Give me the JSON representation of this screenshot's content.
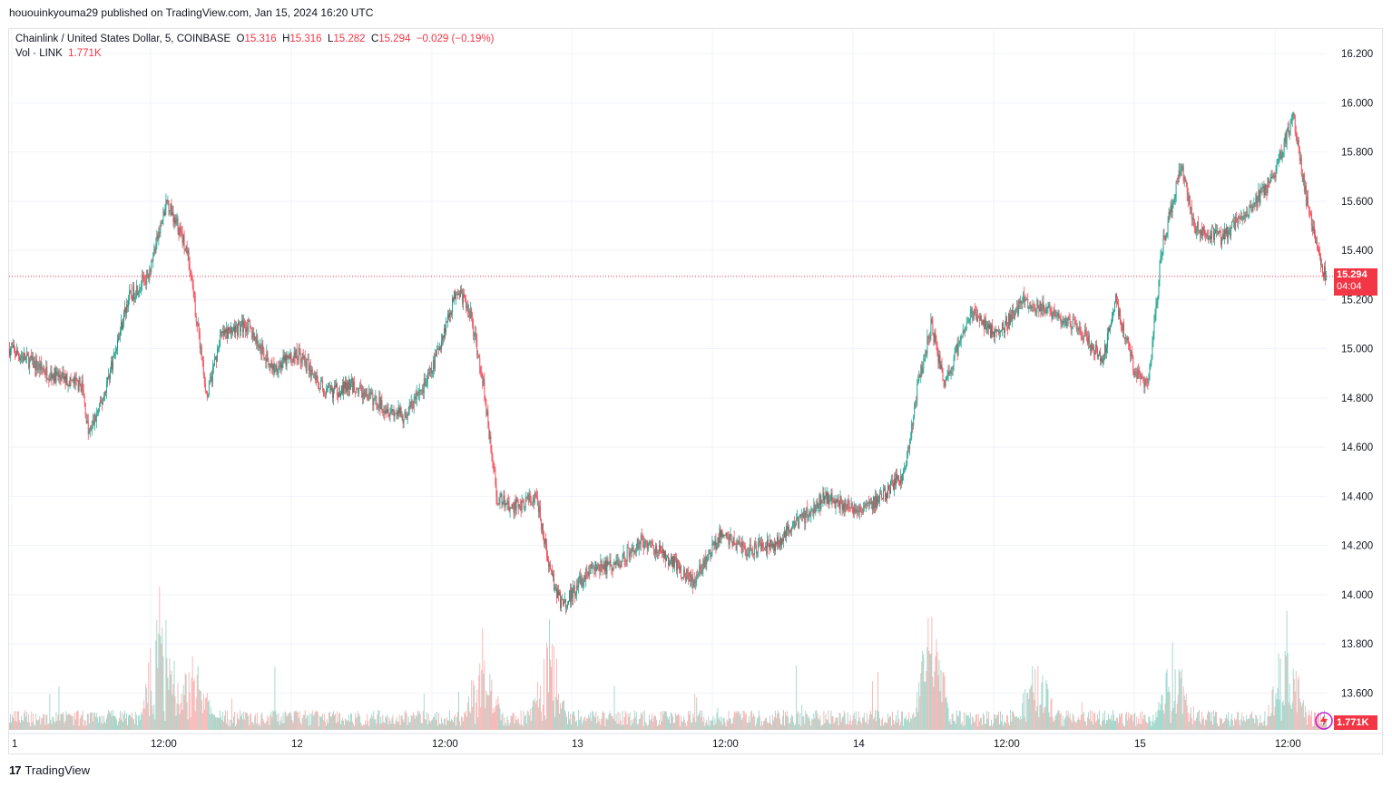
{
  "header": {
    "published_text": "hououinkyouma29 published on TradingView.com, Jan 15, 2024 16:20 UTC"
  },
  "legend": {
    "symbol": "Chainlink / United States Dollar, 5, COINBASE",
    "o_label": "O",
    "o_value": "15.316",
    "h_label": "H",
    "h_value": "15.316",
    "l_label": "L",
    "l_value": "15.282",
    "c_label": "C",
    "c_value": "15.294",
    "change": "−0.029 (−0.19%)",
    "vol_label": "Vol · LINK",
    "vol_value": "1.771K"
  },
  "price_badge": {
    "price": "15.294",
    "countdown": "04:04"
  },
  "volume_badge": "1.771K",
  "footer": {
    "brand": "TradingView"
  },
  "colors": {
    "up": "#089981",
    "down": "#f23645",
    "up_vol": "#8fd1c4",
    "down_vol": "#f7a9a7",
    "grid": "#f0f3fa"
  },
  "chart_data": {
    "type": "candlestick",
    "symbol": "Chainlink / United States Dollar",
    "interval": "5",
    "exchange": "COINBASE",
    "ylim": [
      13.45,
      16.3
    ],
    "y_ticks": [
      "16.200",
      "16.000",
      "15.800",
      "15.600",
      "15.400",
      "15.200",
      "15.000",
      "14.800",
      "14.600",
      "14.400",
      "14.200",
      "14.000",
      "13.800",
      "13.600"
    ],
    "x_ticks": [
      "1",
      "12:00",
      "12",
      "12:00",
      "13",
      "12:00",
      "14",
      "12:00",
      "15",
      "12:00"
    ],
    "last_price": 15.294,
    "price_anchors": [
      {
        "t": 0.0,
        "p": 15.0
      },
      {
        "t": 0.03,
        "p": 14.9
      },
      {
        "t": 0.055,
        "p": 14.85
      },
      {
        "t": 0.06,
        "p": 14.65
      },
      {
        "t": 0.07,
        "p": 14.78
      },
      {
        "t": 0.09,
        "p": 15.2
      },
      {
        "t": 0.105,
        "p": 15.3
      },
      {
        "t": 0.12,
        "p": 15.6
      },
      {
        "t": 0.135,
        "p": 15.4
      },
      {
        "t": 0.15,
        "p": 14.8
      },
      {
        "t": 0.16,
        "p": 15.05
      },
      {
        "t": 0.18,
        "p": 15.1
      },
      {
        "t": 0.2,
        "p": 14.92
      },
      {
        "t": 0.22,
        "p": 14.98
      },
      {
        "t": 0.24,
        "p": 14.82
      },
      {
        "t": 0.26,
        "p": 14.85
      },
      {
        "t": 0.28,
        "p": 14.78
      },
      {
        "t": 0.3,
        "p": 14.72
      },
      {
        "t": 0.32,
        "p": 14.9
      },
      {
        "t": 0.34,
        "p": 15.25
      },
      {
        "t": 0.35,
        "p": 15.15
      },
      {
        "t": 0.36,
        "p": 14.85
      },
      {
        "t": 0.37,
        "p": 14.4
      },
      {
        "t": 0.38,
        "p": 14.35
      },
      {
        "t": 0.4,
        "p": 14.4
      },
      {
        "t": 0.41,
        "p": 14.1
      },
      {
        "t": 0.42,
        "p": 13.95
      },
      {
        "t": 0.44,
        "p": 14.1
      },
      {
        "t": 0.46,
        "p": 14.12
      },
      {
        "t": 0.48,
        "p": 14.22
      },
      {
        "t": 0.5,
        "p": 14.15
      },
      {
        "t": 0.52,
        "p": 14.05
      },
      {
        "t": 0.54,
        "p": 14.25
      },
      {
        "t": 0.56,
        "p": 14.18
      },
      {
        "t": 0.58,
        "p": 14.2
      },
      {
        "t": 0.6,
        "p": 14.3
      },
      {
        "t": 0.62,
        "p": 14.4
      },
      {
        "t": 0.64,
        "p": 14.35
      },
      {
        "t": 0.66,
        "p": 14.38
      },
      {
        "t": 0.68,
        "p": 14.5
      },
      {
        "t": 0.69,
        "p": 14.85
      },
      {
        "t": 0.7,
        "p": 15.1
      },
      {
        "t": 0.71,
        "p": 14.85
      },
      {
        "t": 0.73,
        "p": 15.15
      },
      {
        "t": 0.75,
        "p": 15.05
      },
      {
        "t": 0.77,
        "p": 15.2
      },
      {
        "t": 0.79,
        "p": 15.15
      },
      {
        "t": 0.81,
        "p": 15.1
      },
      {
        "t": 0.83,
        "p": 14.95
      },
      {
        "t": 0.84,
        "p": 15.2
      },
      {
        "t": 0.855,
        "p": 14.9
      },
      {
        "t": 0.865,
        "p": 14.85
      },
      {
        "t": 0.875,
        "p": 15.4
      },
      {
        "t": 0.89,
        "p": 15.75
      },
      {
        "t": 0.9,
        "p": 15.5
      },
      {
        "t": 0.92,
        "p": 15.45
      },
      {
        "t": 0.94,
        "p": 15.55
      },
      {
        "t": 0.96,
        "p": 15.7
      },
      {
        "t": 0.975,
        "p": 15.95
      },
      {
        "t": 0.985,
        "p": 15.6
      },
      {
        "t": 0.995,
        "p": 15.35
      },
      {
        "t": 1.0,
        "p": 15.29
      }
    ],
    "volume_spikes_k": [
      {
        "t": 0.115,
        "v": 14
      },
      {
        "t": 0.14,
        "v": 7
      },
      {
        "t": 0.36,
        "v": 8
      },
      {
        "t": 0.41,
        "v": 9
      },
      {
        "t": 0.7,
        "v": 10
      },
      {
        "t": 0.78,
        "v": 6
      },
      {
        "t": 0.885,
        "v": 8
      },
      {
        "t": 0.97,
        "v": 9
      }
    ],
    "last_volume": "1.771K"
  }
}
